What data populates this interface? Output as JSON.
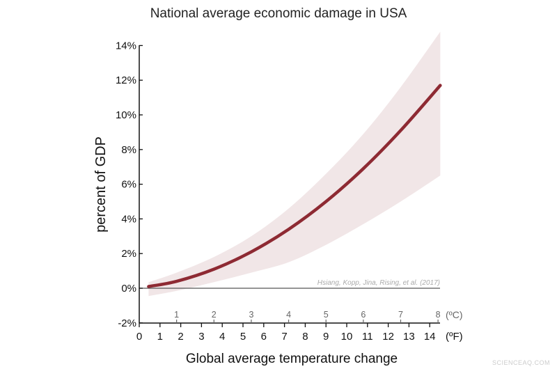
{
  "chart_data": {
    "type": "area",
    "title": "National average economic damage in USA",
    "xlabel": "Global average temperature change",
    "ylabel": "percent of GDP",
    "ylim": [
      -2,
      14
    ],
    "yticks": [
      "-2%",
      "0%",
      "2%",
      "4%",
      "6%",
      "8%",
      "10%",
      "12%",
      "14%"
    ],
    "ytick_values": [
      -2,
      0,
      2,
      4,
      6,
      8,
      10,
      12,
      14
    ],
    "x_celsius_ticks": [
      "1",
      "2",
      "3",
      "4",
      "5",
      "6",
      "7",
      "8"
    ],
    "x_celsius_unit": "(ºC)",
    "x_fahrenheit_ticks": [
      "0",
      "1",
      "2",
      "3",
      "4",
      "5",
      "6",
      "7",
      "8",
      "9",
      "10",
      "11",
      "12",
      "13",
      "14"
    ],
    "x_fahrenheit_unit": "(ºF)",
    "xlim_fahrenheit": [
      0,
      14.5
    ],
    "x_celsius": [
      0.25,
      1,
      2,
      3,
      4,
      5,
      6,
      7,
      8.06
    ],
    "series": [
      {
        "values": [
          0.1,
          0.4,
          1.1,
          2.1,
          3.4,
          5.0,
          6.9,
          9.1,
          11.7
        ]
      }
    ],
    "band_upper": [
      0.35,
      0.9,
      1.8,
      3.0,
      4.6,
      6.6,
      8.9,
      11.6,
      14.8
    ],
    "band_lower": [
      -0.45,
      -0.15,
      0.35,
      0.9,
      1.5,
      2.5,
      3.7,
      5.0,
      6.5
    ],
    "grid": false,
    "annotation": "Hsiang, Kopp, Jina, Rising, et al. (2017)",
    "colors": {
      "line": "#8e2a33",
      "band": "#f1e6e7",
      "axis": "#111111",
      "zero_line": "#555555"
    }
  },
  "watermark": "SCIENCEAQ.COM"
}
